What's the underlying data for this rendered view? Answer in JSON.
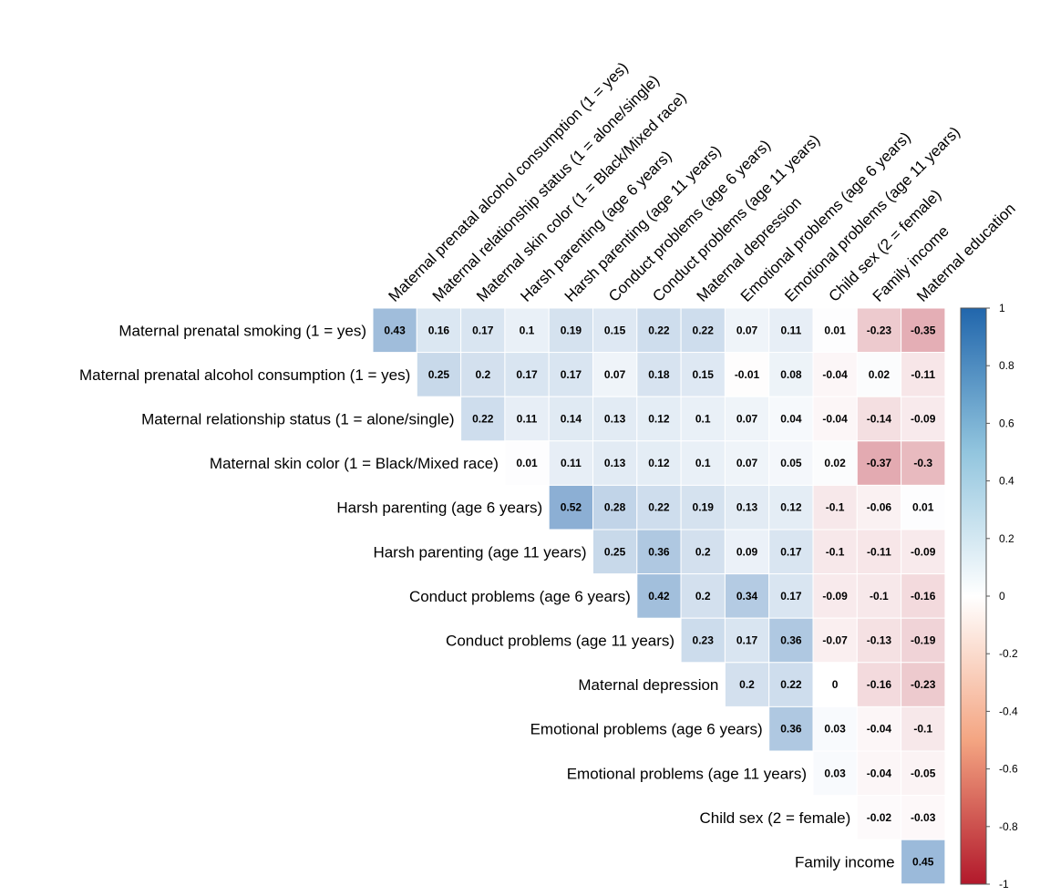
{
  "chart_data": {
    "type": "heatmap",
    "title": "",
    "row_labels": [
      "Maternal prenatal smoking (1 = yes)",
      "Maternal prenatal alcohol consumption (1 = yes)",
      "Maternal relationship status (1 = alone/single)",
      "Maternal skin color (1 = Black/Mixed race)",
      "Harsh parenting (age 6 years)",
      "Harsh parenting (age 11 years)",
      "Conduct problems (age 6 years)",
      "Conduct problems (age 11 years)",
      "Maternal depression",
      "Emotional problems (age 6 years)",
      "Emotional problems (age 11 years)",
      "Child sex (2 = female)",
      "Family income"
    ],
    "column_labels": [
      "Maternal prenatal alcohol consumption (1 = yes)",
      "Maternal relationship status (1 = alone/single)",
      "Maternal skin color (1 = Black/Mixed race)",
      "Harsh parenting (age 6 years)",
      "Harsh parenting (age 11 years)",
      "Conduct problems (age 6 years)",
      "Conduct problems (age 11 years)",
      "Maternal depression",
      "Emotional problems (age 6 years)",
      "Emotional problems (age 11 years)",
      "Child sex (2 = female)",
      "Family income",
      "Maternal education"
    ],
    "values": [
      [
        0.43,
        0.16,
        0.17,
        0.1,
        0.19,
        0.15,
        0.22,
        0.22,
        0.07,
        0.11,
        0.01,
        -0.23,
        -0.35
      ],
      [
        0.25,
        0.2,
        0.17,
        0.17,
        0.07,
        0.18,
        0.15,
        -0.01,
        0.08,
        -0.04,
        0.02,
        -0.11
      ],
      [
        0.22,
        0.11,
        0.14,
        0.13,
        0.12,
        0.1,
        0.07,
        0.04,
        -0.04,
        -0.14,
        -0.09
      ],
      [
        0.01,
        0.11,
        0.13,
        0.12,
        0.1,
        0.07,
        0.05,
        0.02,
        -0.37,
        -0.3
      ],
      [
        0.52,
        0.28,
        0.22,
        0.19,
        0.13,
        0.12,
        -0.1,
        -0.06,
        0.01
      ],
      [
        0.25,
        0.36,
        0.2,
        0.09,
        0.17,
        -0.1,
        -0.11,
        -0.09
      ],
      [
        0.42,
        0.2,
        0.34,
        0.17,
        -0.09,
        -0.1,
        -0.16
      ],
      [
        0.23,
        0.17,
        0.36,
        -0.07,
        -0.13,
        -0.19
      ],
      [
        0.2,
        0.22,
        0,
        -0.16,
        -0.23
      ],
      [
        0.36,
        0.03,
        -0.04,
        -0.1
      ],
      [
        0.03,
        -0.04,
        -0.05
      ],
      [
        -0.02,
        -0.03
      ],
      [
        0.45
      ]
    ],
    "value_labels": [
      [
        "0.43",
        "0.16",
        "0.17",
        "0.1",
        "0.19",
        "0.15",
        "0.22",
        "0.22",
        "0.07",
        "0.11",
        "0.01",
        "-0.23",
        "-0.35"
      ],
      [
        "0.25",
        "0.2",
        "0.17",
        "0.17",
        "0.07",
        "0.18",
        "0.15",
        "-0.01",
        "0.08",
        "-0.04",
        "0.02",
        "-0.11"
      ],
      [
        "0.22",
        "0.11",
        "0.14",
        "0.13",
        "0.12",
        "0.1",
        "0.07",
        "0.04",
        "-0.04",
        "-0.14",
        "-0.09"
      ],
      [
        "0.01",
        "0.11",
        "0.13",
        "0.12",
        "0.1",
        "0.07",
        "0.05",
        "0.02",
        "-0.37",
        "-0.3"
      ],
      [
        "0.52",
        "0.28",
        "0.22",
        "0.19",
        "0.13",
        "0.12",
        "-0.1",
        "-0.06",
        "0.01"
      ],
      [
        "0.25",
        "0.36",
        "0.2",
        "0.09",
        "0.17",
        "-0.1",
        "-0.11",
        "-0.09"
      ],
      [
        "0.42",
        "0.2",
        "0.34",
        "0.17",
        "-0.09",
        "-0.1",
        "-0.16"
      ],
      [
        "0.23",
        "0.17",
        "0.36",
        "-0.07",
        "-0.13",
        "-0.19"
      ],
      [
        "0.2",
        "0.22",
        "0",
        "-0.16",
        "-0.23"
      ],
      [
        "0.36",
        "0.03",
        "-0.04",
        "-0.1"
      ],
      [
        "0.03",
        "-0.04",
        "-0.05"
      ],
      [
        "-0.02",
        "-0.03"
      ],
      [
        "0.45"
      ]
    ],
    "layout": "upper-triangle",
    "color_scale": {
      "min": -1,
      "max": 1,
      "colors": {
        "negative": "#b2182b",
        "mid": "#ffffff",
        "positive": "#2166ac"
      },
      "ticks": [
        "1",
        "0.8",
        "0.6",
        "0.4",
        "0.2",
        "0",
        "-0.2",
        "-0.4",
        "-0.6",
        "-0.8",
        "-1"
      ]
    },
    "legend_position": "right"
  }
}
